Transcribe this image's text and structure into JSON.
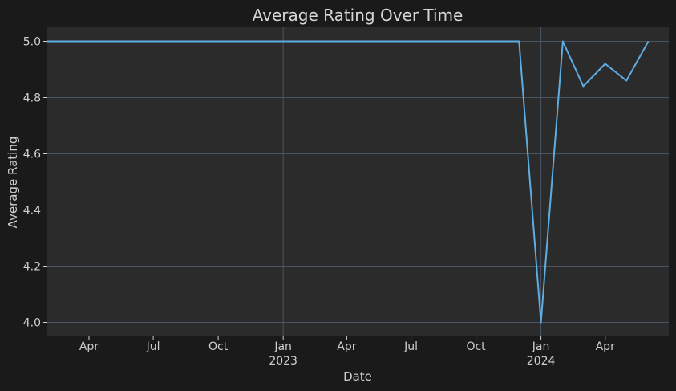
{
  "chart_data": {
    "type": "line",
    "title": "Average Rating Over Time",
    "xlabel": "Date",
    "ylabel": "Average Rating",
    "xlim": [
      "2022-02-01",
      "2024-06-30"
    ],
    "ylim": [
      3.95,
      5.05
    ],
    "grid": true,
    "y_ticks": [
      {
        "value": 4.0,
        "label": "4.0"
      },
      {
        "value": 4.2,
        "label": "4.2"
      },
      {
        "value": 4.4,
        "label": "4.4"
      },
      {
        "value": 4.6,
        "label": "4.6"
      },
      {
        "value": 4.8,
        "label": "4.8"
      },
      {
        "value": 5.0,
        "label": "5.0"
      }
    ],
    "x_ticks": [
      {
        "date": "2022-04-01",
        "label": "Apr",
        "year": "",
        "major": false
      },
      {
        "date": "2022-07-01",
        "label": "Jul",
        "year": "",
        "major": false
      },
      {
        "date": "2022-10-01",
        "label": "Oct",
        "year": "",
        "major": false
      },
      {
        "date": "2023-01-01",
        "label": "Jan",
        "year": "2023",
        "major": true
      },
      {
        "date": "2023-04-01",
        "label": "Apr",
        "year": "",
        "major": false
      },
      {
        "date": "2023-07-01",
        "label": "Jul",
        "year": "",
        "major": false
      },
      {
        "date": "2023-10-01",
        "label": "Oct",
        "year": "",
        "major": false
      },
      {
        "date": "2024-01-01",
        "label": "Jan",
        "year": "2024",
        "major": true
      },
      {
        "date": "2024-04-01",
        "label": "Apr",
        "year": "",
        "major": false
      }
    ],
    "series": [
      {
        "color": "#5dade2",
        "points": [
          {
            "x": "2022-02-01",
            "y": 5.0
          },
          {
            "x": "2023-12-01",
            "y": 5.0
          },
          {
            "x": "2024-01-01",
            "y": 4.0
          },
          {
            "x": "2024-02-01",
            "y": 5.0
          },
          {
            "x": "2024-03-01",
            "y": 4.84
          },
          {
            "x": "2024-04-01",
            "y": 4.92
          },
          {
            "x": "2024-05-01",
            "y": 4.86
          },
          {
            "x": "2024-06-01",
            "y": 5.0
          }
        ]
      }
    ]
  },
  "colors": {
    "background": "#1a1a1a",
    "plot_background": "#2b2b2b",
    "grid": "#4a5563",
    "text": "#cfcfcf"
  }
}
